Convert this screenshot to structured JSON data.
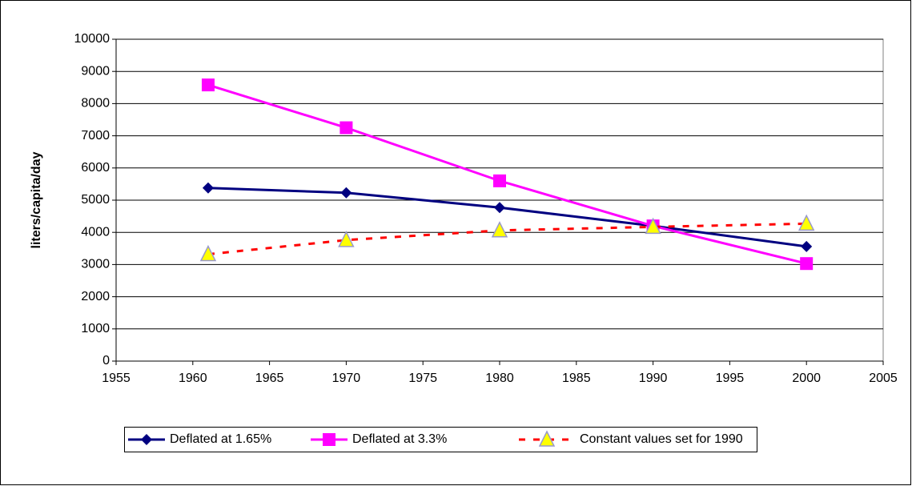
{
  "chart_data": {
    "type": "line",
    "ylabel": "liters/capita/day",
    "x": [
      1961,
      1970,
      1980,
      1990,
      2000
    ],
    "series": [
      {
        "name": "Deflated at 1.65%",
        "color": "#000080",
        "marker": "diamond",
        "dashed": false,
        "values": [
          5380,
          5230,
          4770,
          4200,
          3560
        ]
      },
      {
        "name": "Deflated at 3.3%",
        "color": "#ff00ff",
        "marker": "square",
        "dashed": false,
        "values": [
          8580,
          7250,
          5600,
          4200,
          3030
        ]
      },
      {
        "name": "Constant values set for 1990",
        "color": "#ff0000",
        "marker": "triangle",
        "marker_color": "#ffff00",
        "dashed": true,
        "values": [
          3320,
          3760,
          4060,
          4170,
          4270
        ]
      }
    ],
    "xlim": [
      1955,
      2005
    ],
    "xticks": [
      1955,
      1960,
      1965,
      1970,
      1975,
      1980,
      1985,
      1990,
      1995,
      2000,
      2005
    ],
    "ylim": [
      0,
      10000
    ],
    "yticks": [
      0,
      1000,
      2000,
      3000,
      4000,
      5000,
      6000,
      7000,
      8000,
      9000,
      10000
    ],
    "grid": true,
    "legend": "bottom"
  }
}
